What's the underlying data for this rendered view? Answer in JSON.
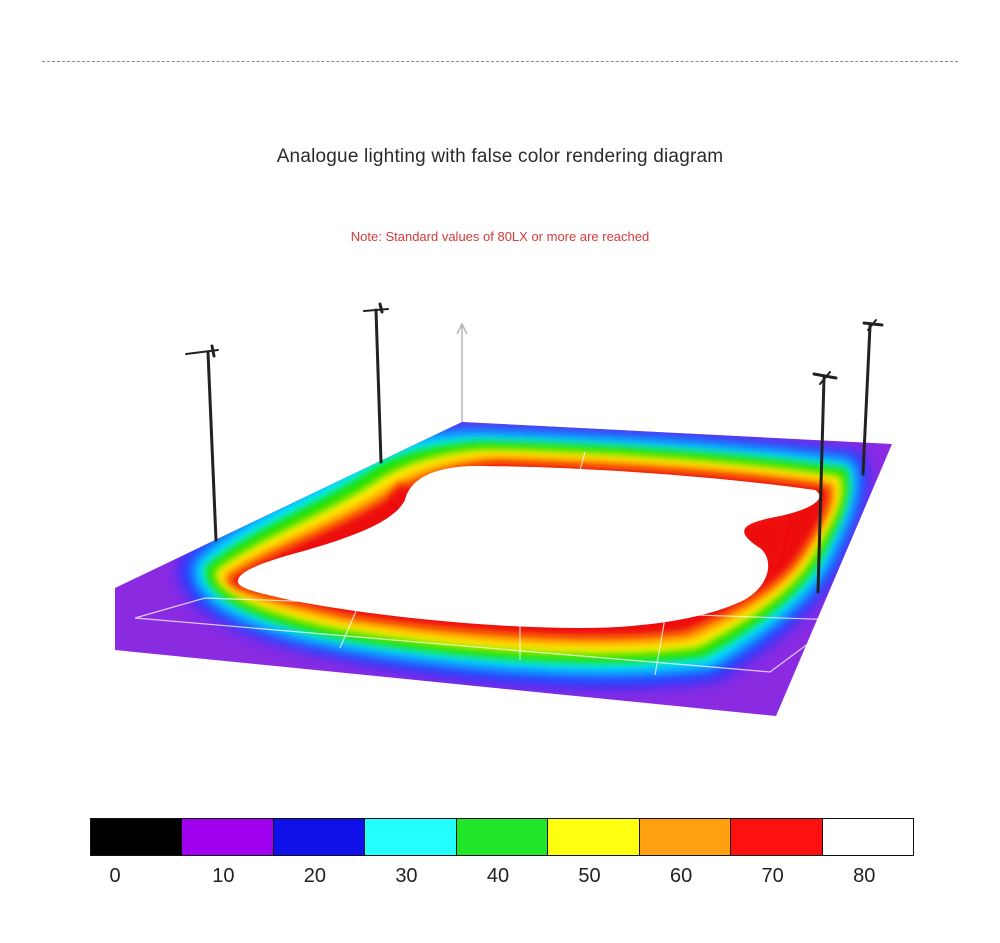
{
  "title": "Analogue lighting with false color rendering diagram",
  "note": {
    "text": "Note: Standard values of 80LX or more are reached",
    "color": "#d63a3a"
  },
  "scene": {
    "poles": 4,
    "zones": [
      {
        "name": "outer",
        "color": "#8a2be2"
      },
      {
        "name": "blue",
        "color": "#2233ff"
      },
      {
        "name": "cyan",
        "color": "#00f0ff"
      },
      {
        "name": "green",
        "color": "#22e000"
      },
      {
        "name": "yellow",
        "color": "#ffee00"
      },
      {
        "name": "orange",
        "color": "#ff9900"
      },
      {
        "name": "red",
        "color": "#ee1111"
      },
      {
        "name": "center",
        "color": "#ffffff"
      }
    ]
  },
  "legend": {
    "items": [
      {
        "label": "0",
        "color": "#000000"
      },
      {
        "label": "10",
        "color": "#a000f0"
      },
      {
        "label": "20",
        "color": "#1010e8"
      },
      {
        "label": "30",
        "color": "#22ffff"
      },
      {
        "label": "40",
        "color": "#22e62a"
      },
      {
        "label": "50",
        "color": "#ffff10"
      },
      {
        "label": "60",
        "color": "#ffa010"
      },
      {
        "label": "70",
        "color": "#ff1010"
      },
      {
        "label": "80",
        "color": "#ffffff"
      }
    ]
  }
}
